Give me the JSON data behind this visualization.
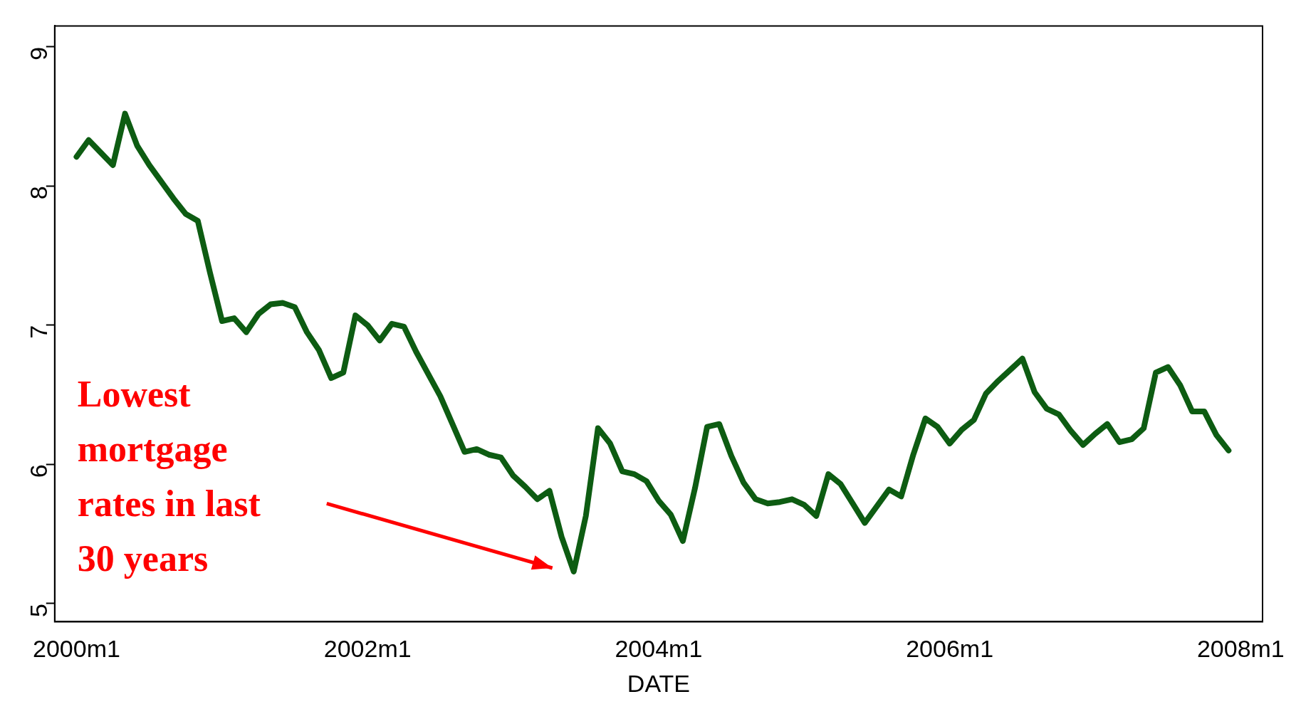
{
  "chart_data": {
    "type": "line",
    "xlabel": "DATE",
    "categories": [
      "2000m1",
      null,
      null,
      null,
      null,
      null,
      null,
      null,
      null,
      null,
      null,
      null,
      null,
      null,
      null,
      null,
      null,
      null,
      null,
      null,
      null,
      null,
      null,
      null,
      "2002m1",
      null,
      null,
      null,
      null,
      null,
      null,
      null,
      null,
      null,
      null,
      null,
      null,
      null,
      null,
      null,
      null,
      null,
      null,
      null,
      null,
      null,
      null,
      null,
      "2004m1",
      null,
      null,
      null,
      null,
      null,
      null,
      null,
      null,
      null,
      null,
      null,
      null,
      null,
      null,
      null,
      null,
      null,
      null,
      null,
      null,
      null,
      null,
      null,
      "2006m1",
      null,
      null,
      null,
      null,
      null,
      null,
      null,
      null,
      null,
      null,
      null,
      null,
      null,
      null,
      null,
      null,
      null,
      null,
      null,
      null,
      null,
      null,
      null,
      "2008m1"
    ],
    "series": [
      {
        "color": "#0d5c12",
        "values": [
          8.21,
          8.33,
          8.24,
          8.15,
          8.52,
          8.29,
          8.15,
          8.03,
          7.91,
          7.8,
          7.75,
          7.38,
          7.03,
          7.05,
          6.95,
          7.08,
          7.15,
          7.16,
          7.13,
          6.95,
          6.82,
          6.62,
          6.66,
          7.07,
          7.0,
          6.89,
          7.01,
          6.99,
          6.81,
          6.65,
          6.49,
          6.29,
          6.09,
          6.11,
          6.07,
          6.05,
          5.92,
          5.84,
          5.75,
          5.81,
          5.48,
          5.23,
          5.63,
          6.26,
          6.15,
          5.95,
          5.93,
          5.88,
          5.74,
          5.64,
          5.45,
          5.83,
          6.27,
          6.29,
          6.06,
          5.87,
          5.75,
          5.72,
          5.73,
          5.75,
          5.71,
          5.63,
          5.93,
          5.86,
          5.72,
          5.58,
          5.7,
          5.82,
          5.77,
          6.07,
          6.33,
          6.27,
          6.15,
          6.25,
          6.32,
          6.51,
          6.6,
          6.68,
          6.76,
          6.52,
          6.4,
          6.36,
          6.24,
          6.14,
          6.22,
          6.29,
          6.16,
          6.18,
          6.26,
          6.66,
          6.7,
          6.57,
          6.38,
          6.38,
          6.21,
          6.1,
          null
        ]
      }
    ],
    "ylim": [
      4.87,
      9.15
    ],
    "yticks": [
      5,
      6,
      7,
      8,
      9
    ],
    "grid": false,
    "legend": false,
    "marker": "none",
    "line_style": "solid",
    "annotations": [
      "Lowest mortgage rates in last 30 years"
    ]
  }
}
